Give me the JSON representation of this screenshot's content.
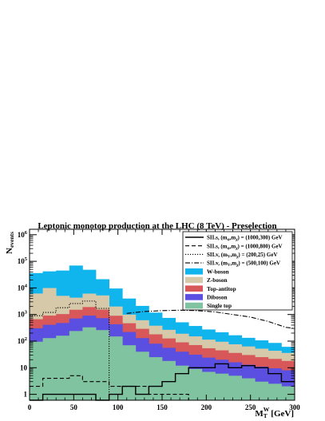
{
  "chart_data": {
    "type": "area",
    "title": "Leptonic monotop production at the LHC (8 TeV) - Preselection",
    "ylabel_main": "N",
    "ylabel_sub": "events",
    "xlabel_main": "M",
    "xlabel_sub": "T",
    "xlabel_sup": "W",
    "xlabel_unit": "[GeV]",
    "xlim": [
      0,
      300
    ],
    "ylim": [
      0.6,
      1600000
    ],
    "yscale": "log",
    "x_ticks": [
      0,
      50,
      100,
      150,
      200,
      250,
      300
    ],
    "x_tick_labels": [
      "0",
      "50",
      "100",
      "150",
      "200",
      "250",
      "300"
    ],
    "y_ticks": [
      1,
      10,
      100,
      1000,
      10000,
      100000,
      1000000
    ],
    "y_tick_labels": [
      {
        "base": "1",
        "exp": ""
      },
      {
        "base": "10",
        "exp": ""
      },
      {
        "base": "10",
        "exp": "2"
      },
      {
        "base": "10",
        "exp": "3"
      },
      {
        "base": "10",
        "exp": "4"
      },
      {
        "base": "10",
        "exp": "5"
      },
      {
        "base": "10",
        "exp": "6"
      }
    ],
    "bin_edges": [
      0,
      15,
      30,
      45,
      60,
      75,
      90,
      105,
      120,
      135,
      150,
      165,
      180,
      195,
      210,
      225,
      240,
      255,
      270,
      285,
      300
    ],
    "stack_series": [
      {
        "name": "Single top",
        "color": "#7fc3a0",
        "values": [
          95,
          130,
          160,
          240,
          330,
          260,
          150,
          70,
          40,
          25,
          18,
          12,
          9,
          7,
          6,
          5,
          4,
          3,
          2.5,
          2
        ]
      },
      {
        "name": "Diboson",
        "color": "#5a4fe0",
        "values": [
          210,
          280,
          320,
          470,
          580,
          470,
          280,
          150,
          90,
          55,
          38,
          28,
          22,
          17,
          14,
          11,
          9,
          8,
          7,
          6
        ]
      },
      {
        "name": "Top-antitop",
        "color": "#d8585a",
        "values": [
          360,
          500,
          560,
          800,
          1000,
          800,
          470,
          250,
          160,
          100,
          70,
          50,
          40,
          30,
          25,
          20,
          17,
          14,
          12,
          10
        ]
      },
      {
        "name": "Z-boson",
        "color": "#d6c9aa",
        "values": [
          5500,
          9000,
          4000,
          2800,
          4200,
          3700,
          1100,
          520,
          320,
          200,
          140,
          100,
          80,
          60,
          50,
          40,
          33,
          27,
          22,
          18
        ]
      },
      {
        "name": "W-boson",
        "color": "#11b5ee",
        "values": [
          30000,
          32000,
          40000,
          65000,
          42000,
          16000,
          7500,
          3000,
          1500,
          800,
          480,
          320,
          220,
          160,
          120,
          90,
          70,
          55,
          42,
          25
        ]
      }
    ],
    "signal_series": [
      {
        "name": "SII.s, (m_φ, m_χ) = (1000,300) GeV",
        "style": "solid",
        "values": [
          0.6,
          1,
          1,
          1,
          1,
          0.6,
          1,
          2,
          1,
          2,
          3,
          6,
          10,
          10,
          14,
          10,
          12,
          10,
          6,
          3
        ]
      },
      {
        "name": "SII.s, (m_φ, m_χ) = (1000,800) GeV",
        "style": "dashed",
        "values": [
          2,
          4,
          4,
          5,
          3,
          3,
          2,
          2,
          2,
          1,
          1,
          1,
          0.6,
          0.6,
          0.6,
          0.6,
          0.6,
          0.6,
          0.6,
          0.6
        ]
      },
      {
        "name": "SII.v, (m_V, m_χ) = (200,25) GeV",
        "style": "dotted",
        "values": [
          900,
          1200,
          1800,
          2600,
          3200,
          1700,
          0.6,
          0.6,
          0.6,
          0.6,
          0.6,
          0.6,
          0.6,
          0.6,
          0.6,
          0.6,
          0.6,
          0.6,
          0.6,
          0.6
        ]
      },
      {
        "name": "SII.v, (m_V, m_χ) = (500,100) GeV",
        "style": "dashdot",
        "x": [
          110,
          130,
          150,
          170,
          190,
          210,
          230,
          250,
          270,
          290,
          300
        ],
        "y": [
          1100,
          1300,
          1400,
          1450,
          1400,
          1250,
          1000,
          800,
          550,
          330,
          300
        ]
      }
    ],
    "legend": {
      "placement": "top-right",
      "lines": [
        {
          "pre": "SII.s, (m",
          "s1": "φ",
          "mid": ",m",
          "s2": "χ",
          "post": ") = (1000,300) GeV",
          "style": "solid"
        },
        {
          "pre": "SII.s, (m",
          "s1": "φ",
          "mid": ",m",
          "s2": "χ",
          "post": ") = (1000,800) GeV",
          "style": "dashed"
        },
        {
          "pre": "SII.v, (m",
          "s1": "V",
          "mid": ",m",
          "s2": "χ",
          "post": ") = (200,25) GeV",
          "style": "dotted"
        },
        {
          "pre": "SII.v, (m",
          "s1": "V",
          "mid": ",m",
          "s2": "χ",
          "post": ") = (500,100) GeV",
          "style": "dashdot"
        }
      ],
      "fills": [
        {
          "label": "W-boson",
          "color": "#11b5ee"
        },
        {
          "label": "Z-boson",
          "color": "#d6c9aa"
        },
        {
          "label": "Top-antitop",
          "color": "#d8585a"
        },
        {
          "label": "Diboson",
          "color": "#5a4fe0"
        },
        {
          "label": "Single top",
          "color": "#7fc3a0"
        }
      ]
    }
  }
}
